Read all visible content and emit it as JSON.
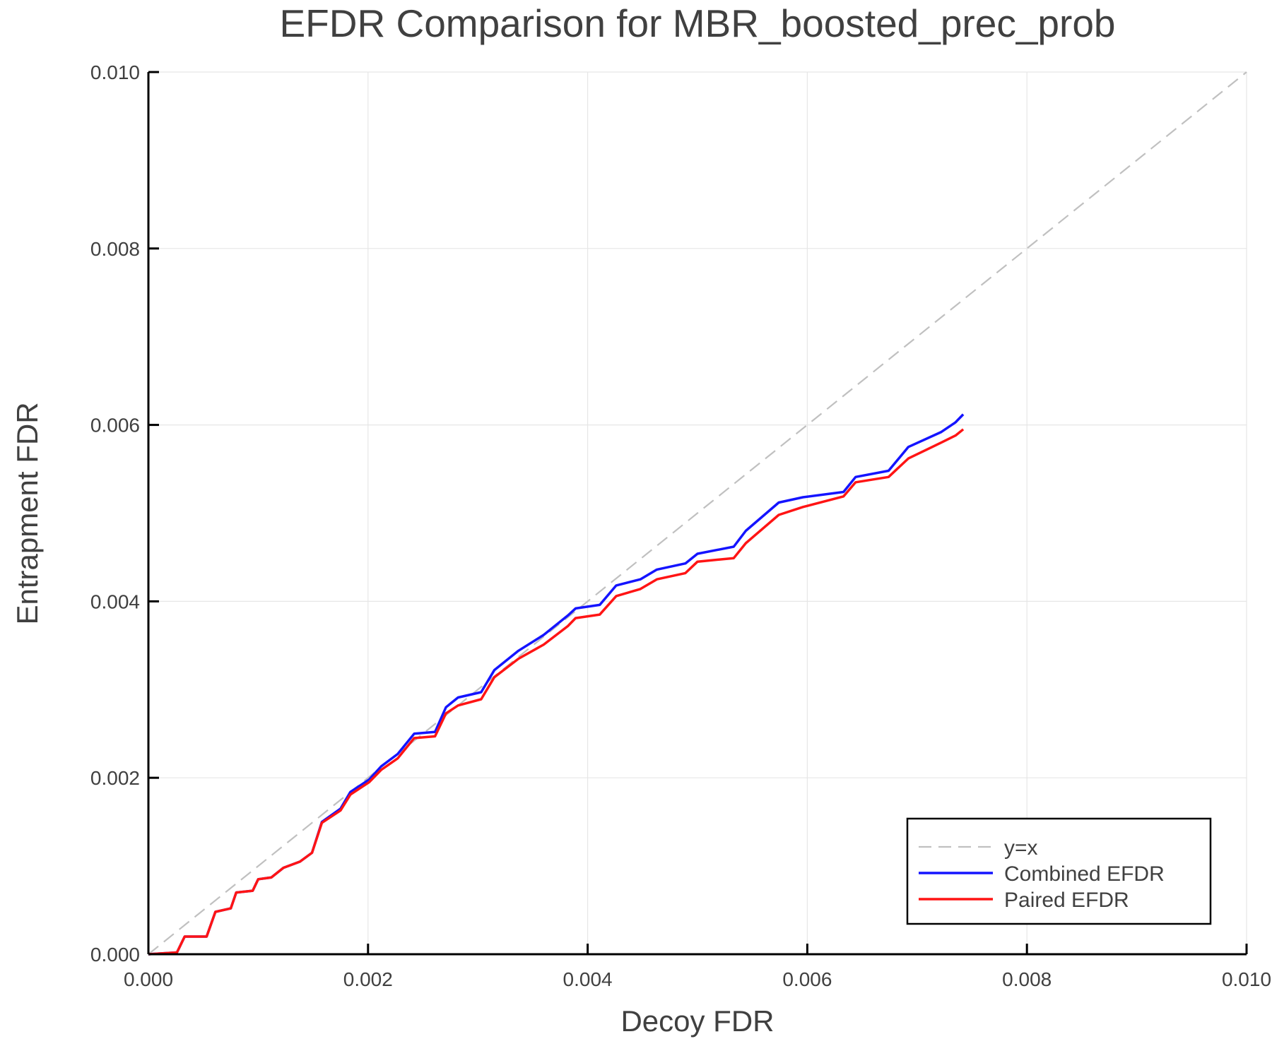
{
  "chart_data": {
    "type": "line",
    "title": "EFDR Comparison for MBR_boosted_prec_prob",
    "xlabel": "Decoy FDR",
    "ylabel": "Entrapment FDR",
    "xlim": [
      0,
      0.01
    ],
    "ylim": [
      0,
      0.01
    ],
    "xticks": [
      "0.000",
      "0.002",
      "0.004",
      "0.006",
      "0.008",
      "0.010"
    ],
    "yticks": [
      "0.000",
      "0.002",
      "0.004",
      "0.006",
      "0.008",
      "0.010"
    ],
    "grid": true,
    "legend_position": "bottom-right",
    "series": [
      {
        "name": "y=x",
        "color": "#c0c0c0",
        "style": "dashed",
        "x": [
          0,
          0.01
        ],
        "y": [
          0,
          0.01
        ]
      },
      {
        "name": "Combined EFDR",
        "color": "#1414ff",
        "style": "solid",
        "x": [
          0,
          0.00026,
          0.00033,
          0.00053,
          0.00061,
          0.00075,
          0.0008,
          0.00095,
          0.001,
          0.00112,
          0.00123,
          0.00138,
          0.00149,
          0.00158,
          0.00175,
          0.00184,
          0.00201,
          0.00212,
          0.00227,
          0.00242,
          0.00261,
          0.00271,
          0.00282,
          0.00303,
          0.00315,
          0.00337,
          0.0036,
          0.00382,
          0.00389,
          0.00411,
          0.00426,
          0.00448,
          0.00463,
          0.00489,
          0.005,
          0.00533,
          0.00544,
          0.00574,
          0.00596,
          0.00633,
          0.00644,
          0.00674,
          0.00692,
          0.00722,
          0.00735,
          0.00742
        ],
        "y": [
          0,
          2e-05,
          0.0002,
          0.0002,
          0.00048,
          0.00052,
          0.0007,
          0.00072,
          0.00085,
          0.00087,
          0.00098,
          0.00105,
          0.00115,
          0.0015,
          0.00165,
          0.00184,
          0.00198,
          0.00213,
          0.00227,
          0.0025,
          0.00252,
          0.0028,
          0.00291,
          0.00297,
          0.00322,
          0.00344,
          0.00362,
          0.00384,
          0.00392,
          0.00396,
          0.00418,
          0.00425,
          0.00436,
          0.00443,
          0.00454,
          0.00462,
          0.0048,
          0.00512,
          0.00518,
          0.00524,
          0.00541,
          0.00548,
          0.00575,
          0.00592,
          0.00603,
          0.00612
        ]
      },
      {
        "name": "Paired EFDR",
        "color": "#ff1414",
        "style": "solid",
        "x": [
          0,
          0.00026,
          0.00033,
          0.00053,
          0.00061,
          0.00075,
          0.0008,
          0.00095,
          0.001,
          0.00112,
          0.00123,
          0.00138,
          0.00149,
          0.00158,
          0.00175,
          0.00184,
          0.00201,
          0.00212,
          0.00227,
          0.00242,
          0.00261,
          0.00271,
          0.00282,
          0.00303,
          0.00315,
          0.00337,
          0.0036,
          0.00382,
          0.00389,
          0.00411,
          0.00426,
          0.00448,
          0.00463,
          0.00489,
          0.005,
          0.00533,
          0.00544,
          0.00574,
          0.00596,
          0.00633,
          0.00644,
          0.00674,
          0.00692,
          0.00722,
          0.00735,
          0.00742
        ],
        "y": [
          0,
          2e-05,
          0.0002,
          0.0002,
          0.00048,
          0.00052,
          0.0007,
          0.00072,
          0.00085,
          0.00087,
          0.00098,
          0.00105,
          0.00115,
          0.00149,
          0.00163,
          0.00181,
          0.00195,
          0.00209,
          0.00222,
          0.00245,
          0.00247,
          0.00273,
          0.00282,
          0.00289,
          0.00314,
          0.00335,
          0.00351,
          0.00372,
          0.00381,
          0.00385,
          0.00406,
          0.00414,
          0.00425,
          0.00432,
          0.00445,
          0.00449,
          0.00466,
          0.00498,
          0.00507,
          0.00519,
          0.00535,
          0.00541,
          0.00562,
          0.0058,
          0.00588,
          0.00595
        ]
      }
    ]
  }
}
